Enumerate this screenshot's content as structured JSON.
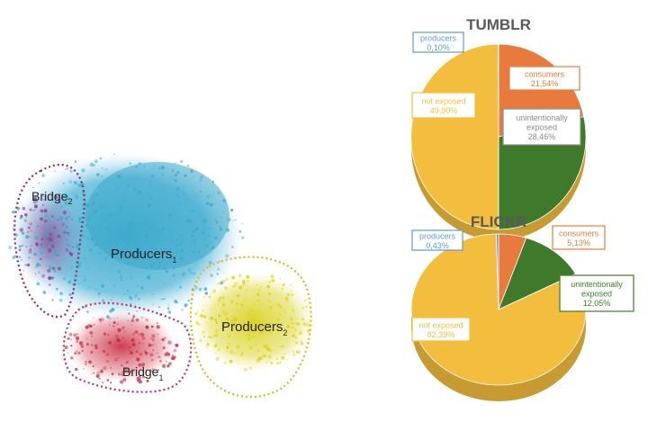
{
  "network": {
    "labels": {
      "bridge2": {
        "base": "Bridge",
        "sub": "2"
      },
      "producers1": {
        "base": "Producers",
        "sub": "1"
      },
      "producers2": {
        "base": "Producers",
        "sub": "2"
      },
      "bridge1": {
        "base": "Bridge",
        "sub": "1"
      }
    },
    "colors": {
      "producers1": "#3aa8cc",
      "producers2": "#d8d21a",
      "bridge1": "#c8283c",
      "bridge2": "#8a3a8a",
      "outline_bridge2": "#8a2a6a",
      "outline_bridge1": "#c0305a",
      "outline_producers2": "#e0b418"
    }
  },
  "chart_data": [
    {
      "type": "pie",
      "title": "TUMBLR",
      "categories": [
        "consumers",
        "unintentionally exposed",
        "not exposed",
        "producers"
      ],
      "values": [
        21.54,
        28.46,
        49.9,
        0.1
      ],
      "labels": [
        "21,54%",
        "28,46%",
        "49,90%",
        "0,10%"
      ],
      "colors": [
        "#e97a3e",
        "#3f7a2c",
        "#f3bd3d",
        "#5b9bd5"
      ],
      "label_colors": [
        "#e97a3e",
        "#8a8a8a",
        "#f3bd3d",
        "#5b9bd5"
      ],
      "legend": "callout boxes"
    },
    {
      "type": "pie",
      "title": "FLICKR",
      "categories": [
        "consumers",
        "unintentionally exposed",
        "not exposed",
        "producers"
      ],
      "values": [
        5.13,
        12.05,
        82.39,
        0.43
      ],
      "labels": [
        "5,13%",
        "12,05%",
        "82,39%",
        "0,43%"
      ],
      "colors": [
        "#e97a3e",
        "#3f7a2c",
        "#f3bd3d",
        "#5b9bd5"
      ],
      "label_colors": [
        "#e97a3e",
        "#3f7a2c",
        "#f3bd3d",
        "#5b9bd5"
      ],
      "legend": "callout boxes"
    }
  ]
}
